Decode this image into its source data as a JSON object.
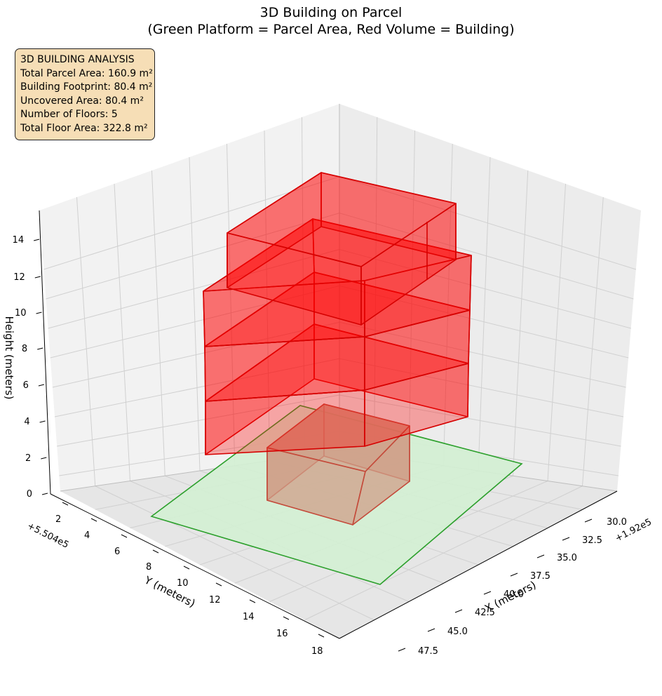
{
  "title_line1": "3D Building on Parcel",
  "title_line2": "(Green Platform = Parcel Area, Red Volume = Building)",
  "info": {
    "heading": "3D BUILDING ANALYSIS",
    "parcel": "Total Parcel Area: 160.9 m²",
    "footprint": "Building Footprint: 80.4 m²",
    "uncovered": "Uncovered Area: 80.4 m²",
    "floors": "Number of Floors: 5",
    "floor_area": "Total Floor Area: 322.8 m²"
  },
  "chart_data": {
    "type": "3d-surface",
    "projection": "perspective 3D axes, grid on",
    "x_axis": {
      "label": "X (meters)",
      "offset_label": "+1.92e5",
      "ticks": [
        "30.0",
        "32.5",
        "35.0",
        "37.5",
        "40.0",
        "42.5",
        "45.0",
        "47.5"
      ]
    },
    "y_axis": {
      "label": "Y (meters)",
      "offset_label": "+5.504e5",
      "ticks": [
        "2",
        "4",
        "6",
        "8",
        "10",
        "12",
        "14",
        "16",
        "18"
      ]
    },
    "z_axis": {
      "label": "Height (meters)",
      "ticks": [
        "0",
        "2",
        "4",
        "6",
        "8",
        "10",
        "12",
        "14"
      ]
    },
    "colors": {
      "parcel_fill": "#d3f0d3",
      "parcel_edge": "#2ca02c",
      "building_fill": "#ff0000",
      "building_edge": "#d60000",
      "ground_floor_fill": "#cf9f88",
      "ground_floor_edge": "#c44a3a"
    },
    "series": [
      {
        "name": "Green Platform = Parcel Area",
        "kind": "parcel polygon at z=0"
      },
      {
        "name": "Red Volume = Building",
        "kind": "stacked floor volumes",
        "floors": 5
      }
    ]
  }
}
